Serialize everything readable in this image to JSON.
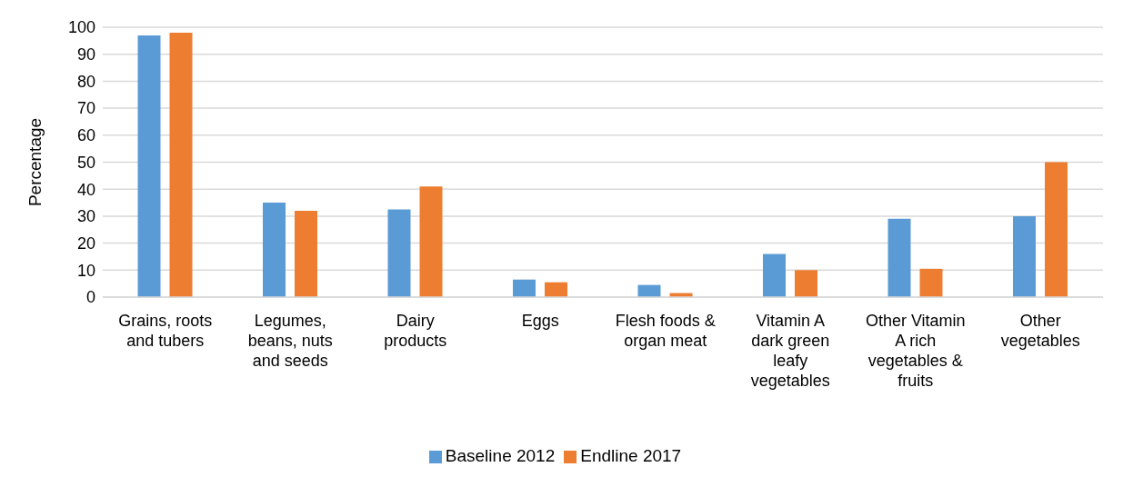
{
  "chart_data": {
    "type": "bar",
    "ylabel": "Percentage",
    "categories": [
      "Grains, roots and tubers",
      "Legumes, beans, nuts and seeds",
      "Dairy products",
      "Eggs",
      "Flesh foods & organ meat",
      "Vitamin A dark green leafy vegetables",
      "Other Vitamin A rich vegetables & fruits",
      "Other vegetables"
    ],
    "series": [
      {
        "name": "Baseline 2012",
        "color": "#5b9bd5",
        "values": [
          97,
          35,
          32.5,
          6.5,
          4.5,
          16,
          29,
          30
        ]
      },
      {
        "name": "Endline 2017",
        "color": "#ed7d31",
        "values": [
          98,
          32,
          41,
          5.5,
          1.5,
          10,
          10.5,
          50
        ]
      }
    ],
    "ylim": [
      0,
      100
    ],
    "yticks": [
      0,
      10,
      20,
      30,
      40,
      50,
      60,
      70,
      80,
      90,
      100
    ],
    "grid": "y",
    "legend": "bottom"
  }
}
